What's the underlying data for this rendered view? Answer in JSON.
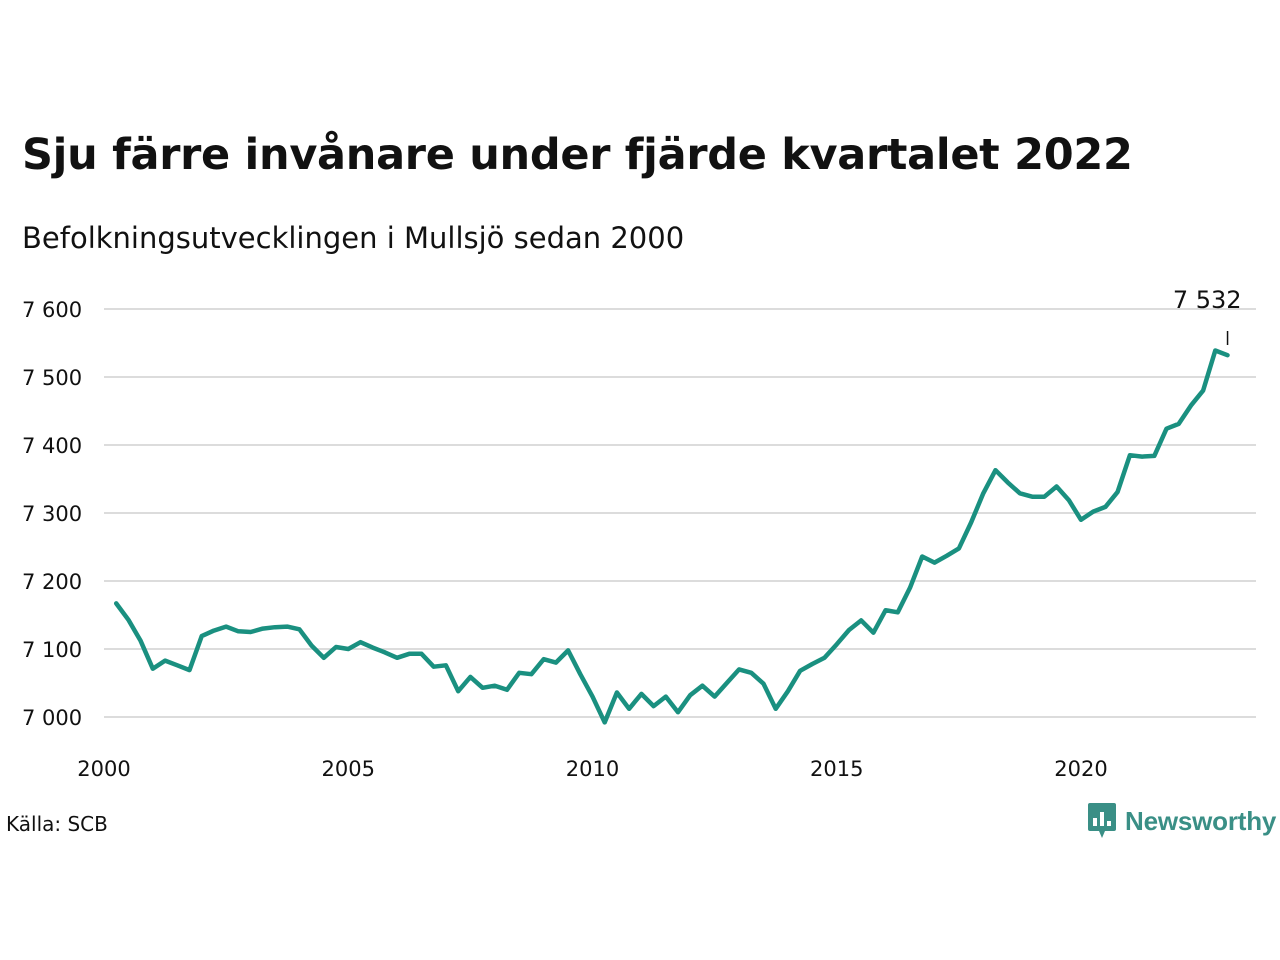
{
  "header": {
    "title": "Sju färre invånare under fjärde kvartalet 2022",
    "subtitle": "Befolkningsutvecklingen i Mullsjö sedan 2000"
  },
  "footer": {
    "source": "Källa: SCB",
    "brand": "Newsworthy",
    "brand_icon": "newsworthy-logo-icon"
  },
  "colors": {
    "line": "#1a9080",
    "grid": "#dcdcdc",
    "brand": "#3a8f86"
  },
  "chart_data": {
    "type": "line",
    "title": "Sju färre invånare under fjärde kvartalet 2022",
    "subtitle": "Befolkningsutvecklingen i Mullsjö sedan 2000",
    "xlabel": "",
    "ylabel": "",
    "x_ticks": [
      2000,
      2005,
      2010,
      2015,
      2020
    ],
    "x_tick_labels": [
      "2000",
      "2005",
      "2010",
      "2015",
      "2020"
    ],
    "xlim": [
      2000,
      2023.5
    ],
    "y_ticks": [
      7000,
      7100,
      7200,
      7300,
      7400,
      7500,
      7600
    ],
    "y_tick_labels": [
      "7 000",
      "7 100",
      "7 200",
      "7 300",
      "7 400",
      "7 500",
      "7 600"
    ],
    "ylim": [
      7000,
      7600
    ],
    "grid": "horizontal",
    "legend": "none",
    "annotation": {
      "x": 2023,
      "y": 7532,
      "label": "7 532"
    },
    "series": [
      {
        "x": [
          2000.25,
          2000.5,
          2000.75,
          2001.0,
          2001.25,
          2001.5,
          2001.75,
          2002.0,
          2002.25,
          2002.5,
          2002.75,
          2003.0,
          2003.25,
          2003.5,
          2003.75,
          2004.0,
          2004.25,
          2004.5,
          2004.75,
          2005.0,
          2005.25,
          2005.5,
          2005.75,
          2006.0,
          2006.25,
          2006.5,
          2006.75,
          2007.0,
          2007.25,
          2007.5,
          2007.75,
          2008.0,
          2008.25,
          2008.5,
          2008.75,
          2009.0,
          2009.25,
          2009.5,
          2009.75,
          2010.0,
          2010.25,
          2010.5,
          2010.75,
          2011.0,
          2011.25,
          2011.5,
          2011.75,
          2012.0,
          2012.25,
          2012.5,
          2012.75,
          2013.0,
          2013.25,
          2013.5,
          2013.75,
          2014.0,
          2014.25,
          2014.5,
          2014.75,
          2015.0,
          2015.25,
          2015.5,
          2015.75,
          2016.0,
          2016.25,
          2016.5,
          2016.75,
          2017.0,
          2017.25,
          2017.5,
          2017.75,
          2018.0,
          2018.25,
          2018.5,
          2018.75,
          2019.0,
          2019.25,
          2019.5,
          2019.75,
          2020.0,
          2020.25,
          2020.5,
          2020.75,
          2021.0,
          2021.25,
          2021.5,
          2021.75,
          2022.0,
          2022.25,
          2022.5,
          2022.75,
          2023.0
        ],
        "values": [
          7167,
          7143,
          7112,
          7071,
          7083,
          7076,
          7069,
          7119,
          7127,
          7133,
          7126,
          7125,
          7130,
          7132,
          7133,
          7129,
          7105,
          7087,
          7103,
          7100,
          7110,
          7102,
          7095,
          7087,
          7093,
          7093,
          7074,
          7076,
          7038,
          7059,
          7043,
          7046,
          7040,
          7065,
          7063,
          7085,
          7080,
          7098,
          7063,
          7030,
          6992,
          7036,
          7012,
          7034,
          7016,
          7030,
          7007,
          7032,
          7046,
          7030,
          7050,
          7070,
          7065,
          7049,
          7012,
          7038,
          7068,
          7078,
          7087,
          7107,
          7128,
          7142,
          7124,
          7157,
          7154,
          7190,
          7236,
          7227,
          7237,
          7248,
          7286,
          7329,
          7363,
          7345,
          7329,
          7324,
          7324,
          7339,
          7319,
          7290,
          7302,
          7309,
          7331,
          7385,
          7383,
          7384,
          7424,
          7431,
          7458,
          7480,
          7539,
          7532
        ]
      }
    ]
  }
}
